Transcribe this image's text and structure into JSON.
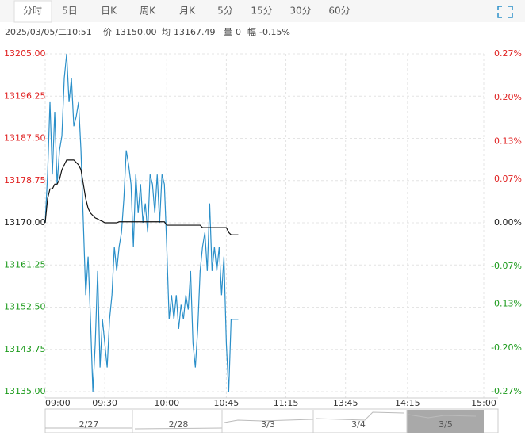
{
  "tabs": [
    "分时",
    "5日",
    "日K",
    "周K",
    "月K",
    "5分",
    "15分",
    "30分",
    "60分"
  ],
  "header": {
    "datetime": "2025/03/05/二10:51",
    "price_label": "价",
    "price": "13150.00",
    "avg_label": "均",
    "avg": "13167.49",
    "vol_label": "量",
    "vol": "0",
    "amp_label": "幅",
    "amp": "-0.15%"
  },
  "navigator": {
    "dates": [
      "2/27",
      "2/28",
      "3/3",
      "3/4",
      "3/5"
    ]
  },
  "chart_data": {
    "type": "line",
    "x": [
      0,
      1,
      2,
      3,
      4,
      5,
      6,
      7,
      8,
      9,
      10,
      11,
      12,
      13,
      14,
      15,
      16,
      17,
      18,
      19,
      20,
      21,
      22,
      23,
      24,
      25,
      26,
      27,
      28,
      29,
      30,
      31,
      32,
      33,
      34,
      35,
      36,
      37,
      38,
      39,
      40,
      41,
      42,
      43,
      44,
      45,
      46,
      47,
      48,
      49,
      50,
      51,
      52,
      53,
      54,
      55,
      56,
      57,
      58,
      59,
      60,
      61,
      62,
      63,
      64,
      65,
      66,
      67,
      68,
      69,
      70,
      71,
      72,
      73,
      74,
      75,
      76,
      77,
      78,
      79,
      80,
      81
    ],
    "series": [
      {
        "name": "价",
        "color": "#2a8fc9",
        "values": [
          13170,
          13180,
          13195,
          13180,
          13193,
          13178,
          13185,
          13188,
          13200,
          13205,
          13195,
          13200,
          13190,
          13192,
          13195,
          13185,
          13170,
          13155,
          13163,
          13150,
          13135,
          13145,
          13160,
          13140,
          13150,
          13145,
          13140,
          13150,
          13155,
          13165,
          13160,
          13165,
          13168,
          13175,
          13185,
          13182,
          13178,
          13165,
          13180,
          13172,
          13178,
          13170,
          13174,
          13168,
          13180,
          13178,
          13172,
          13180,
          13170,
          13180,
          13178,
          13165,
          13150,
          13155,
          13150,
          13155,
          13148,
          13153,
          13150,
          13155,
          13152,
          13160,
          13145,
          13140,
          13148,
          13160,
          13165,
          13168,
          13160,
          13174,
          13160,
          13165,
          13160,
          13165,
          13155,
          13163,
          13145,
          13135,
          13150,
          13150,
          13150,
          13150
        ]
      },
      {
        "name": "均",
        "color": "#111111",
        "values": [
          13170,
          13175,
          13177,
          13177,
          13178,
          13178,
          13179,
          13181,
          13182,
          13183,
          13183,
          13183,
          13183,
          13182.5,
          13182,
          13181,
          13178,
          13175,
          13173,
          13172,
          13171.5,
          13171,
          13170.8,
          13170.5,
          13170.3,
          13170,
          13170,
          13170,
          13170,
          13170,
          13170,
          13170.2,
          13170.2,
          13170.2,
          13170.2,
          13170.2,
          13170.2,
          13170.2,
          13170.2,
          13170.2,
          13170.2,
          13170.2,
          13170.2,
          13170.2,
          13170.2,
          13170.2,
          13170.2,
          13170.2,
          13170.2,
          13170.2,
          13170.2,
          13169.5,
          13169.5,
          13169.5,
          13169.5,
          13169.5,
          13169.5,
          13169.5,
          13169.5,
          13169.5,
          13169.5,
          13169.5,
          13169.5,
          13169.5,
          13169.5,
          13169.5,
          13169,
          13169,
          13169,
          13169,
          13169,
          13169,
          13169,
          13169,
          13169,
          13169,
          13169,
          13168,
          13167.5,
          13167.5,
          13167.5,
          13167.5
        ]
      }
    ],
    "xlim": [
      0,
      184
    ],
    "xticks": [
      {
        "value": 0,
        "label": "09:00"
      },
      {
        "value": 25,
        "label": "09:30"
      },
      {
        "value": 51,
        "label": "10:00"
      },
      {
        "value": 76,
        "label": "10:45"
      },
      {
        "value": 101,
        "label": "11:15"
      },
      {
        "value": 126,
        "label": "13:45"
      },
      {
        "value": 152,
        "label": "14:15"
      },
      {
        "value": 184,
        "label": "15:00"
      }
    ],
    "ylim": [
      13135,
      13205
    ],
    "yticks": [
      {
        "value": 13205,
        "label": "13205.00"
      },
      {
        "value": 13196.25,
        "label": "13196.25"
      },
      {
        "value": 13187.5,
        "label": "13187.50"
      },
      {
        "value": 13178.75,
        "label": "13178.75"
      },
      {
        "value": 13170,
        "label": "13170.00"
      },
      {
        "value": 13161.25,
        "label": "13161.25"
      },
      {
        "value": 13152.5,
        "label": "13152.50"
      },
      {
        "value": 13143.75,
        "label": "13143.75"
      },
      {
        "value": 13135,
        "label": "13135.00"
      }
    ],
    "y2lim": [
      -0.27,
      0.27
    ],
    "y2ticks": [
      {
        "value": 0.27,
        "label": "0.27%"
      },
      {
        "value": 0.2,
        "label": "0.20%"
      },
      {
        "value": 0.13,
        "label": "0.13%"
      },
      {
        "value": 0.07,
        "label": "0.07%"
      },
      {
        "value": 0,
        "label": "0.00%"
      },
      {
        "value": -0.07,
        "label": "-0.07%"
      },
      {
        "value": -0.13,
        "label": "-0.13%"
      },
      {
        "value": -0.2,
        "label": "-0.20%"
      },
      {
        "value": -0.27,
        "label": "-0.27%"
      }
    ],
    "grid": true,
    "up_color": "#e02020",
    "down_color": "#1a9a1a",
    "flat_color": "#222222"
  }
}
